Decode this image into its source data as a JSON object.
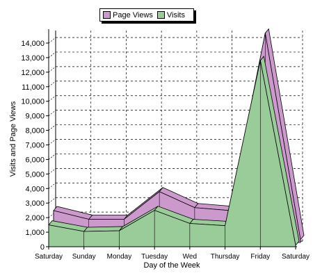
{
  "chart_data": {
    "type": "area",
    "stacked": false,
    "style": "3d",
    "categories": [
      "Saturday",
      "Sunday",
      "Monday",
      "Tuesday",
      "Wed",
      "Thursday",
      "Friday",
      "Saturday"
    ],
    "series": [
      {
        "name": "Page Views",
        "color": "#cc99cc",
        "values": [
          2200,
          1600,
          1600,
          3500,
          2400,
          2200,
          14400,
          200
        ]
      },
      {
        "name": "Visits",
        "color": "#99cc99",
        "values": [
          1500,
          1050,
          1100,
          2500,
          1600,
          1450,
          12800,
          100
        ]
      }
    ],
    "title": "",
    "xlabel": "Day of the Week",
    "ylabel": "Visits and Page Views",
    "ylim": [
      0,
      14000
    ],
    "yticks": [
      "0",
      "1,000",
      "2,000",
      "3,000",
      "4,000",
      "5,000",
      "6,000",
      "7,000",
      "8,000",
      "9,000",
      "10,000",
      "11,000",
      "12,000",
      "13,000",
      "14,000"
    ],
    "grid": true,
    "legend_position": "top"
  }
}
